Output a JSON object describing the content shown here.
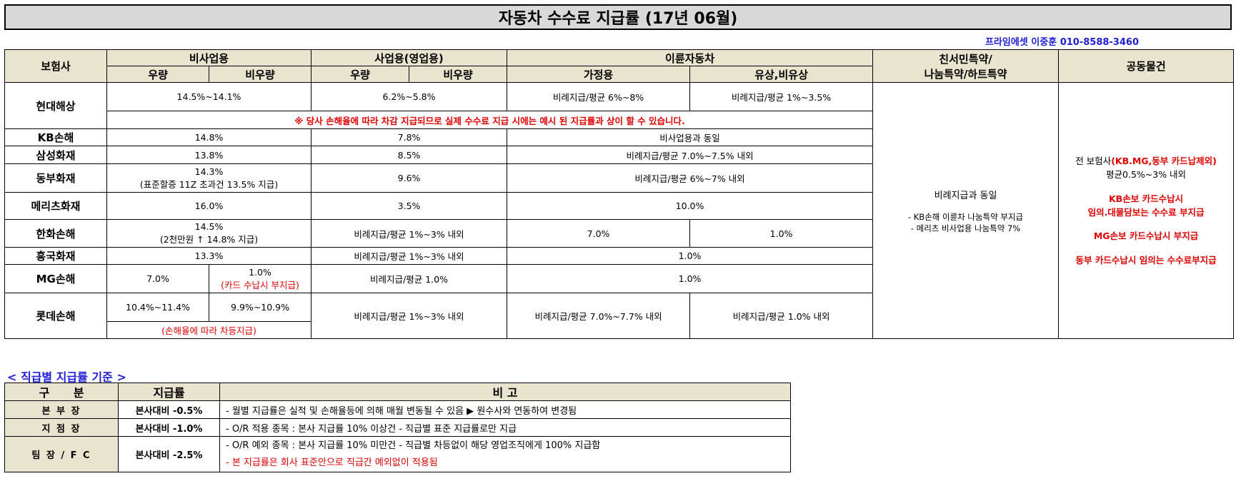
{
  "title": "자동차 수수료 지급률 (17년 06월)",
  "contact": "프라임에셋 이중훈 010-8588-3460",
  "header": {
    "insurer": "보험사",
    "nonbiz": "비사업용",
    "biz": "사업용(영업용)",
    "moto": "이륜자동차",
    "special_l1": "친서민특약/",
    "special_l2": "나눔특약/하트특약",
    "joint": "공동물건",
    "sub_uryang": "우량",
    "sub_biuryang": "비우량",
    "sub_uryang2": "우량",
    "sub_biuryang2": "비우량",
    "sub_home": "가정용",
    "sub_paid": "유상,비유상"
  },
  "rows": {
    "hyundai": {
      "name": "현대해상",
      "nonbiz": "14.5%~14.1%",
      "biz": "6.2%~5.8%",
      "home": "비례지급/평균 6%~8%",
      "paid": "비례지급/평균 1%~3.5%",
      "notice": "※ 당사 손해율에 따라 차감 지급되므로 실제 수수료 지급 시에는 예시 된 지급률과 상이 할 수 있습니다."
    },
    "kb": {
      "name": "KB손해",
      "nonbiz": "14.8%",
      "biz": "7.8%",
      "moto": "비사업용과 동일"
    },
    "samsung": {
      "name": "삼성화재",
      "nonbiz": "13.8%",
      "biz": "8.5%",
      "moto": "비례지급/평균 7.0%~7.5% 내외"
    },
    "dongbu": {
      "name": "동부화재",
      "nonbiz": "14.3%",
      "nonbiz_note": "(표준할증 11Z 초과건 13.5% 지급)",
      "biz": "9.6%",
      "moto": "비례지급/평균 6%~7% 내외"
    },
    "meritz": {
      "name": "메리츠화재",
      "nonbiz": "16.0%",
      "biz": "3.5%",
      "moto": "10.0%"
    },
    "hanwha": {
      "name": "한화손해",
      "nonbiz": "14.5%",
      "nonbiz_note": "(2천만원 ↑ 14.8% 지급)",
      "biz": "비례지급/평균 1%~3% 내외",
      "home": "7.0%",
      "paid": "1.0%"
    },
    "heungkuk": {
      "name": "흥국화재",
      "nonbiz": "13.3%",
      "biz": "비례지급/평균 1%~3% 내외",
      "moto": "1.0%"
    },
    "mg": {
      "name": "MG손해",
      "uryang": "7.0%",
      "biuryang": "1.0%",
      "biuryang_note": "(카드 수납시 부지급)",
      "biz": "비례지급/평균 1.0%",
      "moto": "1.0%"
    },
    "lotte": {
      "name": "롯데손해",
      "uryang": "10.4%~11.4%",
      "biuryang": "9.9%~10.9%",
      "nonbiz_note": "(손해율에 따라 차등지급)",
      "biz": "비례지급/평균 1%~3% 내외",
      "home": "비례지급/평균 7.0%~7.7% 내외",
      "paid": "비례지급/평균 1.0% 내외"
    }
  },
  "special": {
    "main": "비례지급과 동일",
    "note1": "- KB손해 이륜차 나눔특약 부지급",
    "note2": "- 메리츠 비사업용 나눔특약 7%"
  },
  "joint": {
    "l1a": "전 보험사",
    "l1b": "(KB.MG,동부 카드납제외)",
    "l2": "평균0.5%~3% 내외",
    "l3": "KB손보 카드수납시",
    "l4": "임의.대물담보는 수수료 부지급",
    "l5": "MG손보 카드수납시 부지급",
    "l6": "동부 카드수납시 임의는 수수료부지급"
  },
  "grade_section": {
    "title": "< 직급별 지급률 기준 >",
    "h_class": "구      분",
    "h_rate": "지급률",
    "h_note": "비 고",
    "rows": [
      {
        "label": "본 부 장",
        "rate": "본사대비 -0.5%",
        "note": "- 월별 지급률은 실적 및 손해율등에 의해 매월 변동될 수 있음 ▶ 원수사와 연동하여 변경됨"
      },
      {
        "label": "지 점 장",
        "rate": "본사대비 -1.0%",
        "note": "- O/R 적용 종목 : 본사 지급률 10% 이상건 - 직급별 표준 지급률로만 지급"
      },
      {
        "label": "팀 장 / F C",
        "rate": "본사대비 -2.5%",
        "note": "- O/R 예외 종목 : 본사 지급률 10% 미만건 - 직급별 차등없이 해당 영업조직에게 100% 지급함",
        "note2": "- 본 지급률은 회사 표준안으로 직급간 예외없이 적용됨"
      }
    ]
  }
}
